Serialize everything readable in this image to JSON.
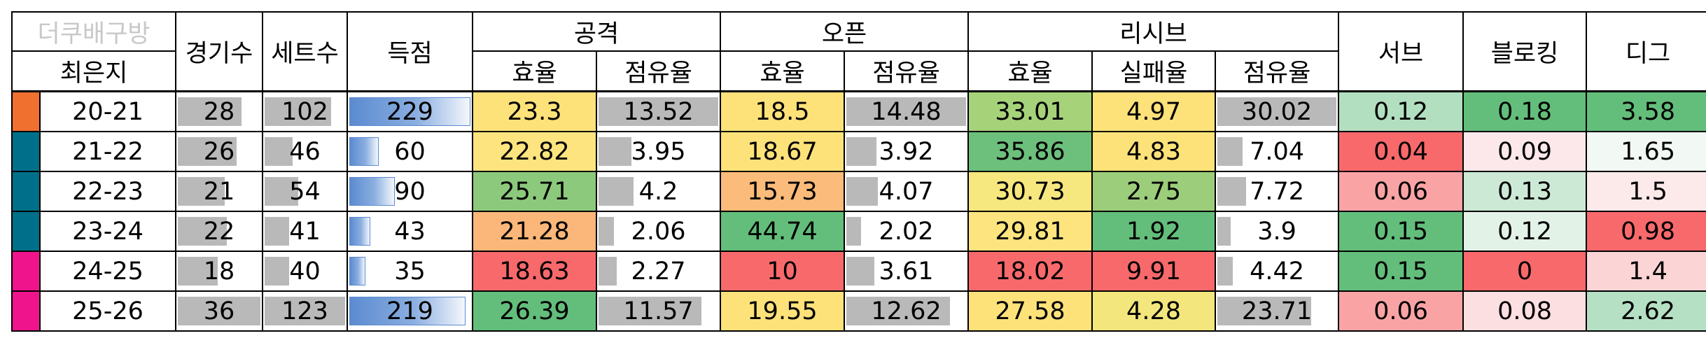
{
  "header": {
    "brand": "더쿠배구방",
    "player": "최은지",
    "games": "경기수",
    "sets": "세트수",
    "points": "득점",
    "attack": "공격",
    "open": "오픈",
    "receive": "리시브",
    "serve": "서브",
    "block": "블로킹",
    "dig": "디그",
    "efficiency": "효율",
    "share": "점유율",
    "fail_rate": "실패율"
  },
  "rows": [
    {
      "season": "20-21",
      "team_color": "#f07030",
      "games": "28",
      "games_frac": 0.78,
      "sets": "102",
      "sets_frac": 0.83,
      "points": "229",
      "points_frac": 1.0,
      "att_eff": "23.3",
      "att_eff_bg": "#fde27a",
      "att_share": "13.52",
      "att_share_frac": 1.0,
      "open_eff": "18.5",
      "open_eff_bg": "#fde27a",
      "open_share": "14.48",
      "open_share_frac": 1.0,
      "rec_eff": "33.01",
      "rec_eff_bg": "#a6d27a",
      "rec_fail": "4.97",
      "rec_fail_bg": "#fde27a",
      "rec_share": "30.02",
      "rec_share_frac": 1.0,
      "serve": "0.12",
      "serve_bg": "#b3dfc1",
      "block": "0.18",
      "block_bg": "#63be7b",
      "dig": "3.58",
      "dig_bg": "#63be7b"
    },
    {
      "season": "21-22",
      "team_color": "#00708a",
      "games": "26",
      "games_frac": 0.72,
      "sets": "46",
      "sets_frac": 0.37,
      "points": "60",
      "points_frac": 0.26,
      "att_eff": "22.82",
      "att_eff_bg": "#fde47e",
      "att_share": "3.95",
      "att_share_frac": 0.29,
      "open_eff": "18.67",
      "open_eff_bg": "#fde27a",
      "open_share": "3.92",
      "open_share_frac": 0.27,
      "rec_eff": "35.86",
      "rec_eff_bg": "#6cc07c",
      "rec_fail": "4.83",
      "rec_fail_bg": "#fde27a",
      "rec_share": "7.04",
      "rec_share_frac": 0.23,
      "serve": "0.04",
      "serve_bg": "#f8696b",
      "block": "0.09",
      "block_bg": "#fce8ea",
      "dig": "1.65",
      "dig_bg": "#f2f8f4"
    },
    {
      "season": "22-23",
      "team_color": "#00708a",
      "games": "21",
      "games_frac": 0.58,
      "sets": "54",
      "sets_frac": 0.44,
      "points": "90",
      "points_frac": 0.39,
      "att_eff": "25.71",
      "att_eff_bg": "#8cc97c",
      "att_share": "4.2",
      "att_share_frac": 0.31,
      "open_eff": "15.73",
      "open_eff_bg": "#fbbb7a",
      "open_share": "4.07",
      "open_share_frac": 0.28,
      "rec_eff": "30.73",
      "rec_eff_bg": "#f6e77e",
      "rec_fail": "2.75",
      "rec_fail_bg": "#9ccd7a",
      "rec_share": "7.72",
      "rec_share_frac": 0.26,
      "serve": "0.06",
      "serve_bg": "#faa3a5",
      "block": "0.13",
      "block_bg": "#cce9d5",
      "dig": "1.5",
      "dig_bg": "#fce9ea"
    },
    {
      "season": "23-24",
      "team_color": "#00708a",
      "games": "22",
      "games_frac": 0.61,
      "sets": "41",
      "sets_frac": 0.33,
      "points": "43",
      "points_frac": 0.19,
      "att_eff": "21.28",
      "att_eff_bg": "#fbb779",
      "att_share": "2.06",
      "att_share_frac": 0.15,
      "open_eff": "44.74",
      "open_eff_bg": "#63be7b",
      "open_share": "2.02",
      "open_share_frac": 0.14,
      "rec_eff": "29.81",
      "rec_eff_bg": "#fde47e",
      "rec_fail": "1.92",
      "rec_fail_bg": "#63be7b",
      "rec_share": "3.9",
      "rec_share_frac": 0.13,
      "serve": "0.15",
      "serve_bg": "#63be7b",
      "block": "0.12",
      "block_bg": "#e2f2e7",
      "dig": "0.98",
      "dig_bg": "#f8696b"
    },
    {
      "season": "24-25",
      "team_color": "#f0148c",
      "games": "18",
      "games_frac": 0.5,
      "sets": "40",
      "sets_frac": 0.33,
      "points": "35",
      "points_frac": 0.15,
      "att_eff": "18.63",
      "att_eff_bg": "#f8696b",
      "att_share": "2.27",
      "att_share_frac": 0.17,
      "open_eff": "10",
      "open_eff_bg": "#f8696b",
      "open_share": "3.61",
      "open_share_frac": 0.25,
      "rec_eff": "18.02",
      "rec_eff_bg": "#f8696b",
      "rec_fail": "9.91",
      "rec_fail_bg": "#f8696b",
      "rec_share": "4.42",
      "rec_share_frac": 0.15,
      "serve": "0.15",
      "serve_bg": "#63be7b",
      "block": "0",
      "block_bg": "#f8696b",
      "dig": "1.4",
      "dig_bg": "#fbd4d5"
    },
    {
      "season": "25-26",
      "team_color": "#f0148c",
      "games": "36",
      "games_frac": 1.0,
      "sets": "123",
      "sets_frac": 1.0,
      "points": "219",
      "points_frac": 0.96,
      "att_eff": "26.39",
      "att_eff_bg": "#63be7b",
      "att_share": "11.57",
      "att_share_frac": 0.86,
      "open_eff": "19.55",
      "open_eff_bg": "#fde27a",
      "open_share": "12.62",
      "open_share_frac": 0.87,
      "rec_eff": "27.58",
      "rec_eff_bg": "#fde27a",
      "rec_fail": "4.28",
      "rec_fail_bg": "#f2e67c",
      "rec_share": "23.71",
      "rec_share_frac": 0.79,
      "serve": "0.06",
      "serve_bg": "#faa3a5",
      "block": "0.08",
      "block_bg": "#fcdfe1",
      "dig": "2.62",
      "dig_bg": "#b6e0c3"
    }
  ]
}
